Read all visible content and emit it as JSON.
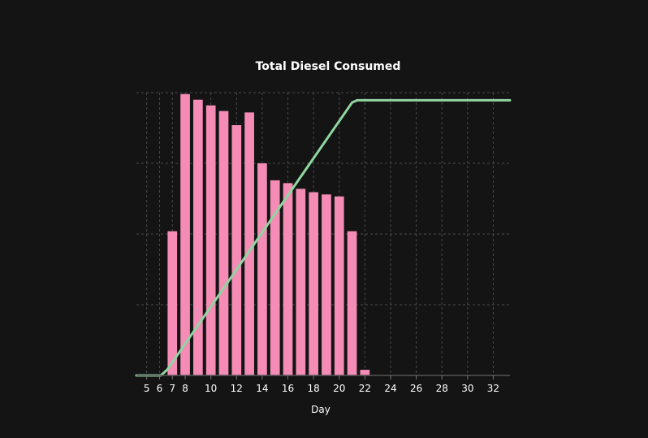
{
  "chart_data": {
    "type": "bar",
    "title": "Total Diesel Consumed",
    "xlabel": "Day",
    "ylabel": "",
    "xlim": [
      4.2,
      33.3
    ],
    "ylim": [
      0,
      100
    ],
    "grid": true,
    "colors": {
      "background": "#141414",
      "bar": "#f48cb6",
      "line": "#8fd6a0",
      "grid": "#4a4a4a",
      "text": "#ffffff"
    },
    "x_ticks": [
      5,
      6,
      7,
      8,
      10,
      12,
      14,
      16,
      18,
      20,
      22,
      24,
      26,
      28,
      30,
      32
    ],
    "y_ticks": [
      0,
      25,
      50,
      75,
      100
    ],
    "bars": {
      "x": [
        7,
        8,
        9,
        10,
        11,
        12,
        13,
        14,
        15,
        16,
        17,
        18,
        19,
        20,
        21,
        22
      ],
      "values": [
        51,
        99.5,
        97.5,
        95.5,
        93.5,
        88.5,
        93,
        75,
        69,
        68,
        66,
        64.8,
        64,
        63.3,
        51,
        2
      ]
    },
    "series": [
      {
        "type": "line",
        "x": [
          4.2,
          6.1,
          6.6,
          21.0,
          21.4,
          33.3
        ],
        "values": [
          0,
          0,
          2,
          96.5,
          97.3,
          97.3
        ]
      }
    ]
  }
}
